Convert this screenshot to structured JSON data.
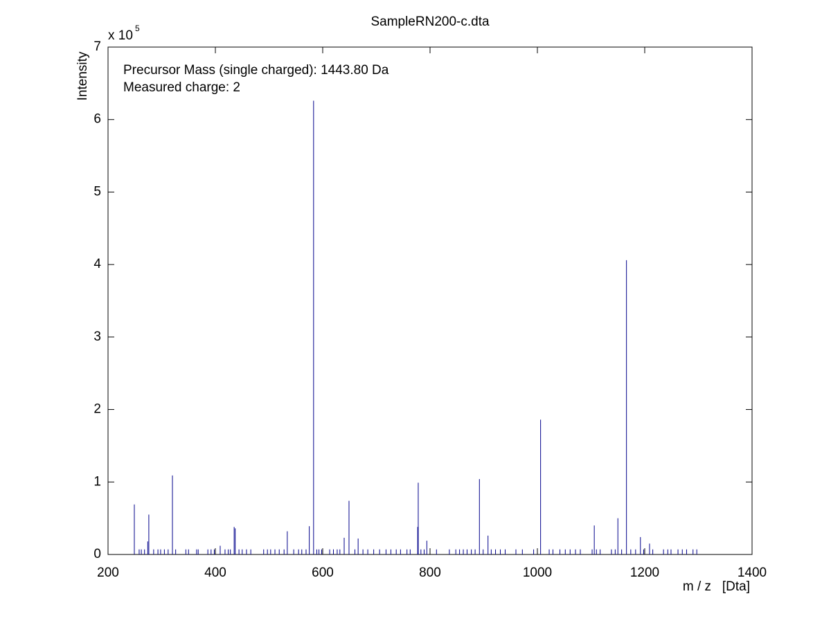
{
  "chart_data": {
    "type": "stem",
    "title": "SampleRN200-c.dta",
    "x_label": "m / z   [Dta]",
    "y_label": "Intensity",
    "y_multiplier": {
      "base": "x 10",
      "exponent": "5"
    },
    "annotations": [
      "Precursor Mass (single charged): 1443.80 Da",
      "Measured charge: 2"
    ],
    "xlim": [
      200,
      1400
    ],
    "xticks": [
      200,
      400,
      600,
      800,
      1000,
      1200,
      1400
    ],
    "ylim": [
      0,
      7
    ],
    "yticks": [
      0,
      1,
      2,
      3,
      4,
      5,
      6,
      7
    ],
    "color": "#00008b",
    "x": [
      249,
      274,
      276,
      320,
      409,
      435,
      437,
      534,
      575,
      583,
      640,
      649,
      666,
      777,
      778,
      794,
      892,
      908,
      1006,
      1106,
      1150,
      1166,
      1192,
      1209,
      258,
      262,
      268,
      285,
      293,
      298,
      305,
      312,
      326,
      345,
      350,
      365,
      368,
      386,
      392,
      398,
      418,
      424,
      428,
      444,
      450,
      458,
      466,
      490,
      497,
      503,
      511,
      519,
      528,
      546,
      555,
      561,
      569,
      589,
      593,
      598,
      613,
      620,
      627,
      632,
      660,
      675,
      684,
      695,
      706,
      718,
      727,
      737,
      745,
      757,
      763,
      783,
      789,
      812,
      836,
      848,
      855,
      862,
      869,
      877,
      884,
      899,
      914,
      922,
      931,
      940,
      960,
      972,
      993,
      1022,
      1029,
      1042,
      1052,
      1061,
      1071,
      1080,
      1102,
      1110,
      1117,
      1138,
      1145,
      1157,
      1174,
      1183,
      1198,
      1215,
      1235,
      1243,
      1249,
      1262,
      1270,
      1278,
      1290,
      1297
    ],
    "values": [
      0.69,
      0.18,
      0.55,
      1.09,
      0.12,
      0.38,
      0.36,
      0.32,
      0.39,
      6.26,
      0.23,
      0.74,
      0.22,
      0.38,
      0.99,
      0.19,
      1.04,
      0.26,
      1.86,
      0.4,
      0.5,
      4.06,
      0.24,
      0.15,
      0.07,
      0.07,
      0.07,
      0.07,
      0.07,
      0.07,
      0.07,
      0.07,
      0.07,
      0.07,
      0.07,
      0.07,
      0.07,
      0.07,
      0.07,
      0.07,
      0.07,
      0.07,
      0.07,
      0.07,
      0.07,
      0.07,
      0.07,
      0.07,
      0.07,
      0.07,
      0.07,
      0.07,
      0.07,
      0.07,
      0.07,
      0.07,
      0.07,
      0.07,
      0.07,
      0.07,
      0.07,
      0.07,
      0.07,
      0.07,
      0.07,
      0.07,
      0.07,
      0.07,
      0.07,
      0.07,
      0.07,
      0.07,
      0.07,
      0.07,
      0.07,
      0.07,
      0.07,
      0.07,
      0.07,
      0.07,
      0.07,
      0.07,
      0.07,
      0.07,
      0.07,
      0.07,
      0.07,
      0.07,
      0.07,
      0.07,
      0.07,
      0.07,
      0.07,
      0.07,
      0.07,
      0.07,
      0.07,
      0.07,
      0.07,
      0.07,
      0.07,
      0.07,
      0.07,
      0.07,
      0.07,
      0.07,
      0.07,
      0.07,
      0.07,
      0.07,
      0.07,
      0.07,
      0.07,
      0.07,
      0.07,
      0.07,
      0.07,
      0.07
    ]
  }
}
